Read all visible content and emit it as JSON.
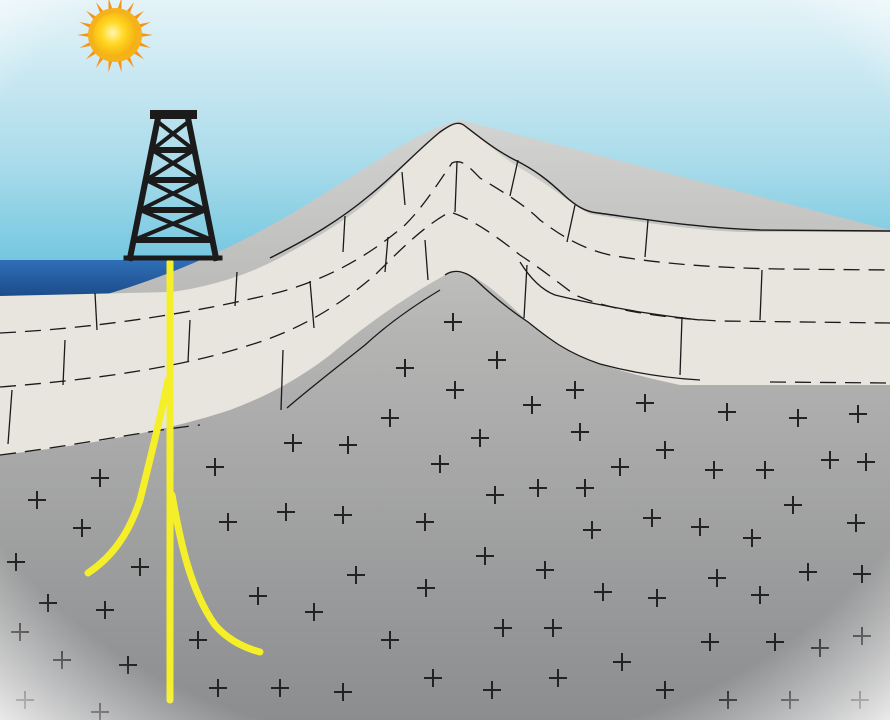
{
  "scene": {
    "description_elements": [
      "sun",
      "sky",
      "sea",
      "mountain",
      "sediment-layers",
      "faults",
      "granite-basement",
      "drilling-rig",
      "borehole",
      "lateral-fractures"
    ],
    "colors": {
      "sky_top": "#cfeaf4",
      "sky_bottom": "#6cc3dd",
      "sea_top": "#2a68b0",
      "sea_bottom": "#1e4f8e",
      "sediment": "#e6e4dc",
      "basement_top": "#c9c9c9",
      "basement_bottom": "#8e8f90",
      "derrick": "#1b1b1b",
      "borehole": "#f5ef2a",
      "sun_core": "#ffd21e",
      "sun_rays": "#f39a14",
      "line": "#1a1a1a"
    },
    "icons": {
      "sun": "sun-icon",
      "rig": "drilling-derrick-icon",
      "basement_marker": "plus-mark"
    }
  }
}
